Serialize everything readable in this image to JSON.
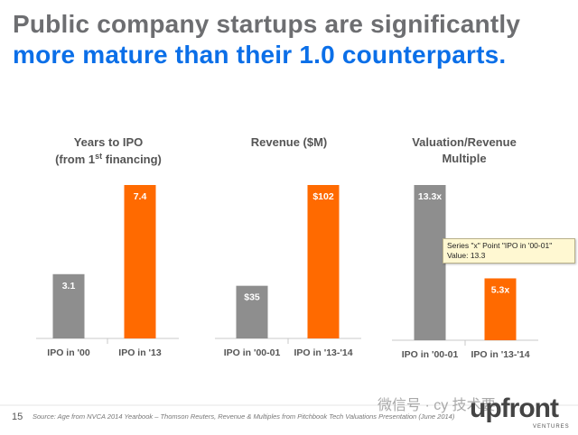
{
  "title": {
    "line1": "Public company startups are significantly",
    "line2": "more mature than their 1.0 counterparts."
  },
  "colors": {
    "gray": "#8e8e8e",
    "orange": "#ff6a00",
    "title_gray": "#6d6e71",
    "title_blue": "#0b6fe8"
  },
  "chart_data": [
    {
      "type": "bar",
      "title": "Years to IPO (from 1st financing)",
      "title_lines": [
        "Years to IPO",
        "(from 1st financing)"
      ],
      "categories": [
        "IPO in '00",
        "IPO in '13"
      ],
      "values": [
        3.1,
        7.4
      ],
      "labels": [
        "3.1",
        "7.4"
      ],
      "ylim": [
        0,
        7.4
      ]
    },
    {
      "type": "bar",
      "title": "Revenue ($M)",
      "title_lines": [
        "Revenue ($M)"
      ],
      "categories": [
        "IPO in '00-01",
        "IPO in '13-'14"
      ],
      "values": [
        35,
        102
      ],
      "labels": [
        "$35",
        "$102"
      ],
      "ylim": [
        0,
        102
      ]
    },
    {
      "type": "bar",
      "title": "Valuation/Revenue Multiple",
      "title_lines": [
        "Valuation/Revenue",
        "Multiple"
      ],
      "categories": [
        "IPO in '00-01",
        "IPO in '13-'14"
      ],
      "values": [
        13.3,
        5.3
      ],
      "labels": [
        "13.3x",
        "5.3x"
      ],
      "ylim": [
        0,
        13.3
      ]
    }
  ],
  "tooltip": {
    "line1": "Series \"x\" Point \"IPO in '00-01\"",
    "line2": "Value:  13.3"
  },
  "footer": {
    "page_number": "15",
    "source": "Source: Age from NVCA 2014 Yearbook – Thomson Reuters, Revenue & Multiples from Pitchbook Tech Valuations Presentation (June 2014)"
  },
  "watermark": {
    "wechat": "微信号 · cy 技术要"
  },
  "logo": {
    "name": "upfront",
    "sub": "VENTURES"
  }
}
